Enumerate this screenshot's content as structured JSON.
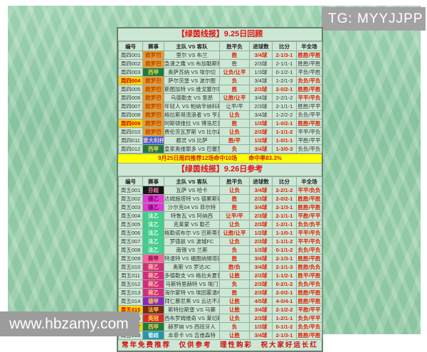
{
  "tg_banner": {
    "text": "TG: MYYJJPP"
  },
  "watermark": {
    "text": "www.hbzamy.com"
  },
  "columns": [
    "编号",
    "赛事",
    "主队 VS 客队",
    "胜平负",
    "进球数",
    "比分",
    "半全场"
  ],
  "colors": {
    "value_hit": "#e02000",
    "value_miss": "#333333",
    "highlight_bg": "#ffd700",
    "highlight_text": "#c80000",
    "banner_bg": "#ffff00",
    "title_red": "#e01212",
    "panel_green": "#93cba6",
    "leagues": {
      "欧罗巴": {
        "bg": "#e89b2e",
        "text": "#b54300"
      },
      "西甲": {
        "bg": "#1f7a3d",
        "text": "#ffd24d"
      },
      "意大利杯": {
        "bg": "#3a5fd9",
        "text": "#ffc0c0"
      },
      "芬超": {
        "bg": "#141414",
        "text": "#ff7ab0"
      },
      "德乙": {
        "bg": "#e13bd4",
        "text": "#7a0060"
      },
      "法乙": {
        "bg": "#3fcf8e",
        "text": "#eafff2"
      },
      "荷甲": {
        "bg": "#f2679c",
        "text": "#8a0040"
      },
      "荷乙": {
        "bg": "#d62a7e",
        "text": "#ffe0a0"
      },
      "德甲": {
        "bg": "#8a24c4",
        "text": "#ffd24d"
      },
      "法甲": {
        "bg": "#7a2a10",
        "text": "#ffd24d"
      },
      "英冠": {
        "bg": "#d92b2b",
        "text": "#ffe04d"
      },
      "葡超": {
        "bg": "#2596a6",
        "text": "#d8f4ff"
      }
    }
  },
  "review_table": {
    "title": "【绿茵线报】9.25日回顾",
    "rows": [
      {
        "id": "周四001",
        "highlight": false,
        "league": "欧罗巴",
        "match": "里尔 VS 布兰",
        "values": [
          "胜",
          "3/4球",
          "2-1/3-1",
          "胜胜/平胜"
        ],
        "hits": [
          true,
          true,
          true,
          true
        ]
      },
      {
        "id": "周四002",
        "highlight": false,
        "league": "欧罗巴",
        "match": "急速之鹰 VS 布加勒斯特星",
        "values": [
          "胜",
          "2/3球",
          "2-1/1-1",
          "胜胜/平胜"
        ],
        "hits": [
          false,
          false,
          false,
          false
        ]
      },
      {
        "id": "周四003",
        "highlight": false,
        "league": "西甲",
        "match": "奥萨苏纳 VS 埃尔切",
        "values": [
          "让负/让平",
          "1/3球",
          "0-1/2-1",
          "平负/平胜"
        ],
        "hits": [
          true,
          false,
          false,
          false
        ]
      },
      {
        "id": "周四004",
        "highlight": true,
        "league": "欧罗巴",
        "match": "萨尔茨堡 VS 波尔图",
        "values": [
          "负",
          "3/4球",
          "1-2/1-3",
          "负负/平负"
        ],
        "hits": [
          true,
          false,
          false,
          true
        ]
      },
      {
        "id": "周四005",
        "highlight": false,
        "league": "欧罗巴",
        "match": "斯图加特 VS 维戈塞尔塔",
        "values": [
          "胜",
          "2/3球",
          "2-0/2-1",
          "胜胜/平胜"
        ],
        "hits": [
          true,
          true,
          true,
          true
        ]
      },
      {
        "id": "周四006",
        "highlight": false,
        "league": "欧罗巴",
        "match": "乌德勒支 VS 里昂",
        "values": [
          "让胜/让平",
          "3/4球",
          "2-2/1-2",
          "平平/平负"
        ],
        "hits": [
          true,
          false,
          false,
          true
        ]
      },
      {
        "id": "周四007",
        "highlight": false,
        "league": "欧罗巴",
        "match": "年轻人 VS 帕纳辛纳科斯",
        "values": [
          "让平/平",
          "2/3球",
          "2-1/1-1",
          "胜胜/平平"
        ],
        "hits": [
          false,
          false,
          false,
          false
        ]
      },
      {
        "id": "周四008",
        "highlight": false,
        "league": "欧罗巴",
        "match": "格拉斯哥流浪者 VS 亨克",
        "values": [
          "让负",
          "3/4球",
          "1-2/2-2",
          "负负/平平"
        ],
        "hits": [
          true,
          false,
          false,
          false
        ]
      },
      {
        "id": "周四009",
        "highlight": true,
        "league": "欧罗巴",
        "match": "阿斯顿维拉 VS 博洛尼亚",
        "values": [
          "胜",
          "1/3球",
          "1-0/2-1",
          "胜胜/平胜"
        ],
        "hits": [
          true,
          true,
          true,
          true
        ]
      },
      {
        "id": "周四010",
        "highlight": false,
        "league": "欧罗巴",
        "match": "费伦茨瓦罗斯 VS 比尔森",
        "values": [
          "让负",
          "2/3球",
          "1-1/1-2",
          "平平/平负"
        ],
        "hits": [
          true,
          true,
          true,
          false
        ]
      },
      {
        "id": "周四011",
        "highlight": false,
        "league": "意大利杯",
        "match": "都灵 VS 比萨",
        "values": [
          "胜/平",
          "1/2球",
          "1-0/1-1",
          "平胜/平平"
        ],
        "hits": [
          true,
          true,
          true,
          false
        ]
      },
      {
        "id": "周四012",
        "highlight": false,
        "league": "西甲",
        "match": "皇家奥维耶多 VS 巴塞罗那",
        "values": [
          "负",
          "3/4球",
          "1-3/0-3",
          "负负/平负"
        ],
        "hits": [
          true,
          true,
          true,
          false
        ]
      }
    ]
  },
  "summary_banner": {
    "text": "9月25日周四推荐12场命中10场　　命中率83.3%"
  },
  "forecast_table": {
    "title": "【绿茵线报】9.26日参考",
    "rows": [
      {
        "id": "周五001",
        "highlight": false,
        "league": "芬超",
        "match": "瓦萨 VS 哈卡",
        "values": [
          "让负",
          "3/4球",
          "2-2/1-2",
          "平平/负负"
        ],
        "hits": [
          true,
          true,
          true,
          true
        ]
      },
      {
        "id": "周五002",
        "highlight": false,
        "league": "德乙",
        "match": "达姆施塔特 VS 德累斯顿",
        "values": [
          "胜",
          "2/3球",
          "2-0/2-1",
          "胜胜/平胜"
        ],
        "hits": [
          true,
          true,
          true,
          true
        ]
      },
      {
        "id": "周五003",
        "highlight": false,
        "league": "德乙",
        "match": "沙尔克04 VS 菲尔特",
        "values": [
          "胜",
          "3/4球",
          "2-1/3-1",
          "胜胜/平胜"
        ],
        "hits": [
          true,
          true,
          true,
          true
        ]
      },
      {
        "id": "周五004",
        "highlight": false,
        "league": "法乙",
        "match": "特鲁瓦 VS 阿纳西",
        "values": [
          "让平/平",
          "2/3球",
          "2-1/1-1",
          "平胜/平平"
        ],
        "hits": [
          true,
          true,
          true,
          true
        ]
      },
      {
        "id": "周五005",
        "highlight": false,
        "league": "法乙",
        "match": "克莱蒙 VS 勒芒",
        "values": [
          "让负",
          "2/3球",
          "1-2/1-1",
          "负负/负平"
        ],
        "hits": [
          true,
          true,
          true,
          true
        ]
      },
      {
        "id": "周五006",
        "highlight": false,
        "league": "法乙",
        "match": "格勒诺布尔 VS 巴斯蒂亚",
        "values": [
          "让胜/让平",
          "1/2球",
          "1-1/0-1",
          "平平/平负"
        ],
        "hits": [
          true,
          true,
          true,
          true
        ]
      },
      {
        "id": "周五007",
        "highlight": false,
        "league": "法乙",
        "match": "罗德兹 VS 波城FC",
        "values": [
          "让负",
          "2/3球",
          "1-1/1-2",
          "平平/平负"
        ],
        "hits": [
          true,
          true,
          true,
          true
        ]
      },
      {
        "id": "周五008",
        "highlight": false,
        "league": "法乙",
        "match": "南锡 VS 兰斯",
        "values": [
          "负",
          "1/3球",
          "0-1/1-2",
          "负负/平负"
        ],
        "hits": [
          true,
          true,
          true,
          true
        ]
      },
      {
        "id": "周五009",
        "highlight": false,
        "league": "荷甲",
        "match": "特温特 VS 福图纳锡塔德",
        "values": [
          "胜",
          "3/4球",
          "2-1/3-1",
          "胜胜/平胜"
        ],
        "hits": [
          true,
          true,
          true,
          true
        ]
      },
      {
        "id": "周五010",
        "highlight": false,
        "league": "荷乙",
        "match": "奥斯 VS 罗达JC",
        "values": [
          "胜/负",
          "3/4球",
          "2-1/1-3",
          "胜胜/负负"
        ],
        "hits": [
          true,
          true,
          true,
          true
        ]
      },
      {
        "id": "周五011",
        "highlight": false,
        "league": "荷乙",
        "match": "多德勒支 VS 格拉夫夏普",
        "values": [
          "让胜",
          "2/3球",
          "1-1/2-1",
          "胜平/平胜"
        ],
        "hits": [
          true,
          true,
          true,
          true
        ]
      },
      {
        "id": "周五012",
        "highlight": false,
        "league": "荷乙",
        "match": "马斯特里赫特 VS 埃门",
        "values": [
          "负",
          "2/3球",
          "0-2/1-2",
          "负负/平负"
        ],
        "hits": [
          true,
          true,
          true,
          true
        ]
      },
      {
        "id": "周五013",
        "highlight": false,
        "league": "荷乙",
        "match": "海尔蒙特 VS 埃因霍温FC",
        "values": [
          "胜",
          "2/3球",
          "2-0/2-1",
          "胜胜/平胜"
        ],
        "hits": [
          true,
          true,
          true,
          true
        ]
      },
      {
        "id": "周五014",
        "highlight": false,
        "league": "德甲",
        "match": "拜仁慕尼黑 VS 云达不来梅",
        "values": [
          "让胜",
          "4/5球",
          "4-0/4-1",
          "胜胜/平胜"
        ],
        "hits": [
          true,
          true,
          true,
          true
        ]
      },
      {
        "id": "周五015",
        "highlight": true,
        "league": "法甲",
        "match": "斯特拉斯堡 VS 马赛",
        "values": [
          "让胜",
          "3/4球",
          "2-1/2-2",
          "平胜/平平"
        ],
        "hits": [
          true,
          true,
          true,
          true
        ]
      },
      {
        "id": "周五016",
        "highlight": false,
        "league": "英冠",
        "match": "西布罗姆维奇 VS 莱切斯特城",
        "values": [
          "让负",
          "2/3球",
          "1-2/1-1",
          "负负/平平"
        ],
        "hits": [
          true,
          true,
          true,
          true
        ]
      },
      {
        "id": "周五017",
        "highlight": true,
        "league": "西甲",
        "match": "赫罗纳 VS 西班牙人",
        "values": [
          "负",
          "1/3球",
          "0-1/1-2",
          "负负/平负"
        ],
        "hits": [
          true,
          true,
          true,
          true
        ]
      },
      {
        "id": "周五018",
        "highlight": false,
        "league": "葡超",
        "match": "本菲卡 VS 吉维森特",
        "values": [
          "让胜",
          "3/4球",
          "2-1/3-1",
          "胜胜/平胜"
        ],
        "hits": [
          true,
          true,
          true,
          true
        ]
      }
    ]
  },
  "footer": {
    "text": "常年免费推荐　仅供参考　理性购彩　祝大家好运长红"
  }
}
